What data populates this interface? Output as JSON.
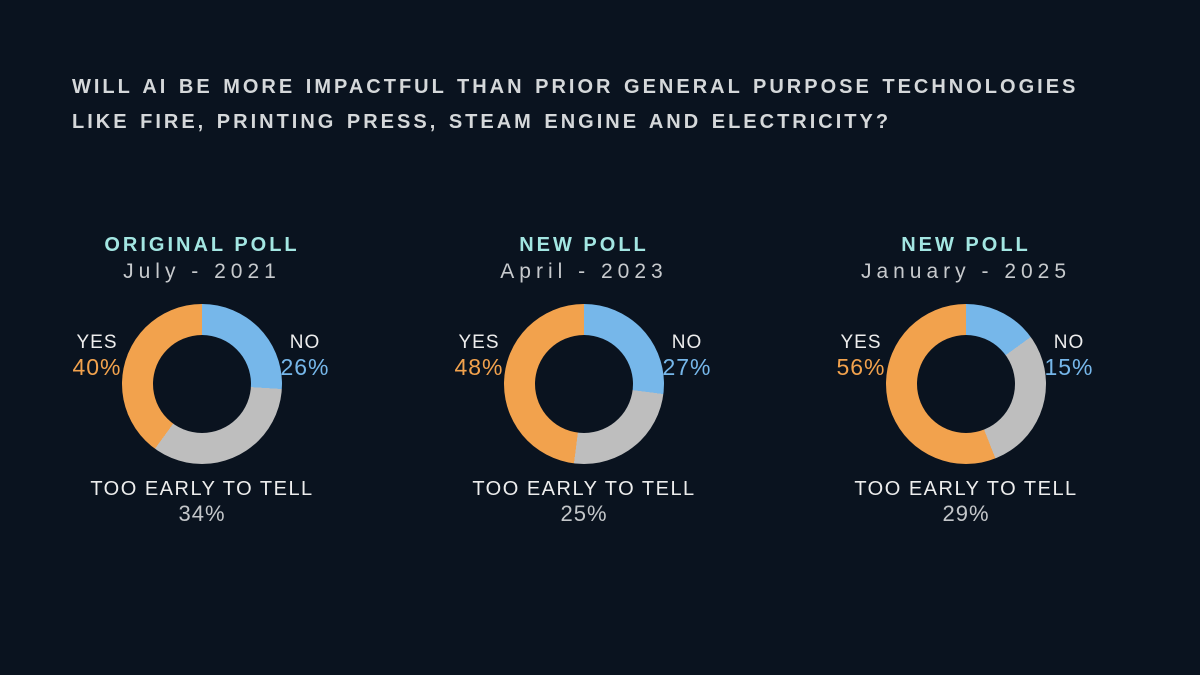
{
  "title": {
    "lines": [
      "WILL AI BE MORE IMPACTFUL THAN PRIOR GENERAL PURPOSE TECHNOLOGIES",
      "LIKE FIRE, PRINTING PRESS, STEAM ENGINE AND ELECTRICITY?"
    ]
  },
  "colors": {
    "background": "#0a131f",
    "title_text": "#d5d8da",
    "heading_accent": "#a3e6e2",
    "date_text": "#c7cacd",
    "label_text": "#ededed",
    "pct_muted": "#c3c6c9",
    "yes": "#f2a24d",
    "no": "#76b7ea",
    "too_early": "#bebebe"
  },
  "chart_data": [
    {
      "type": "pie",
      "subtype": "donut",
      "title": "ORIGINAL POLL",
      "subtitle": "July - 2021",
      "categories": [
        "NO",
        "TOO EARLY TO TELL",
        "YES"
      ],
      "values": [
        26,
        34,
        40
      ],
      "segment_colors": [
        "#76b7ea",
        "#bebebe",
        "#f2a24d"
      ],
      "start_angle_deg": 0,
      "direction": "clockwise",
      "hole_ratio": 0.61,
      "labels": {
        "yes": "YES",
        "yes_pct": "40%",
        "no": "NO",
        "no_pct": "26%",
        "too_early": "TOO EARLY TO TELL",
        "too_early_pct": "34%"
      }
    },
    {
      "type": "pie",
      "subtype": "donut",
      "title": "NEW POLL",
      "subtitle": "April - 2023",
      "categories": [
        "NO",
        "TOO EARLY TO TELL",
        "YES"
      ],
      "values": [
        27,
        25,
        48
      ],
      "segment_colors": [
        "#76b7ea",
        "#bebebe",
        "#f2a24d"
      ],
      "start_angle_deg": 0,
      "direction": "clockwise",
      "hole_ratio": 0.61,
      "labels": {
        "yes": "YES",
        "yes_pct": "48%",
        "no": "NO",
        "no_pct": "27%",
        "too_early": "TOO EARLY TO TELL",
        "too_early_pct": "25%"
      }
    },
    {
      "type": "pie",
      "subtype": "donut",
      "title": "NEW POLL",
      "subtitle": "January - 2025",
      "categories": [
        "NO",
        "TOO EARLY TO TELL",
        "YES"
      ],
      "values": [
        15,
        29,
        56
      ],
      "segment_colors": [
        "#76b7ea",
        "#bebebe",
        "#f2a24d"
      ],
      "start_angle_deg": 0,
      "direction": "clockwise",
      "hole_ratio": 0.61,
      "labels": {
        "yes": "YES",
        "yes_pct": "56%",
        "no": "NO",
        "no_pct": "15%",
        "too_early": "TOO EARLY TO TELL",
        "too_early_pct": "29%"
      }
    }
  ]
}
